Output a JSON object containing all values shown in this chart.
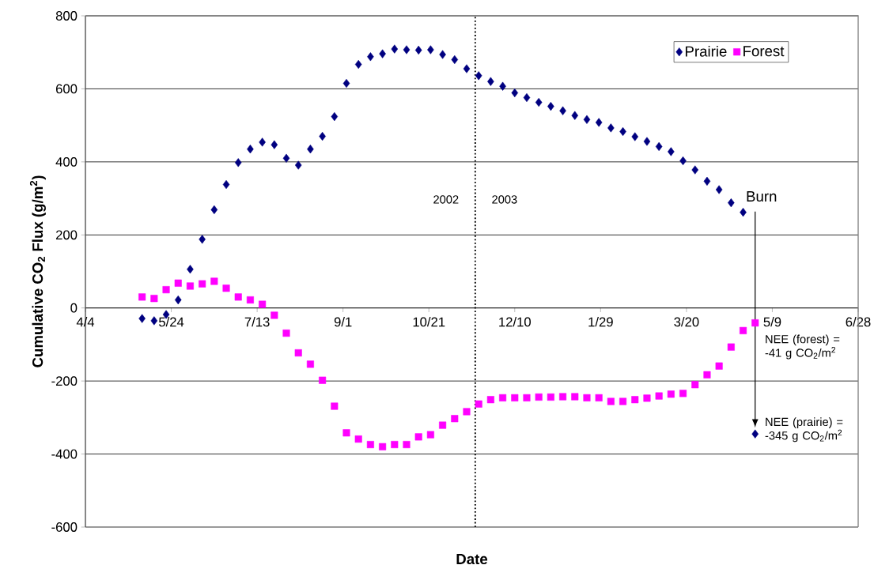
{
  "chart_data": {
    "type": "scatter",
    "xlabel": "Date",
    "ylabel": "Cumulative CO$_{2}$ Flux (g/m$^{2}$)",
    "x": [
      "2002-05-07",
      "2002-05-14",
      "2002-05-21",
      "2002-05-28",
      "2002-06-04",
      "2002-06-11",
      "2002-06-18",
      "2002-06-25",
      "2002-07-02",
      "2002-07-09",
      "2002-07-16",
      "2002-07-23",
      "2002-07-30",
      "2002-08-06",
      "2002-08-13",
      "2002-08-20",
      "2002-08-27",
      "2002-09-03",
      "2002-09-10",
      "2002-09-17",
      "2002-09-24",
      "2002-10-01",
      "2002-10-08",
      "2002-10-15",
      "2002-10-22",
      "2002-10-29",
      "2002-11-05",
      "2002-11-12",
      "2002-11-19",
      "2002-11-26",
      "2002-12-03",
      "2002-12-10",
      "2002-12-17",
      "2002-12-24",
      "2002-12-31",
      "2003-01-07",
      "2003-01-14",
      "2003-01-21",
      "2003-01-28",
      "2003-02-04",
      "2003-02-11",
      "2003-02-18",
      "2003-02-25",
      "2003-03-04",
      "2003-03-11",
      "2003-03-18",
      "2003-03-25",
      "2003-04-01",
      "2003-04-08",
      "2003-04-15",
      "2003-04-22",
      "2003-04-29"
    ],
    "series": [
      {
        "name": "Prairie",
        "color": "#000080",
        "marker": "diamond",
        "values": [
          -29,
          -35,
          -18,
          22,
          106,
          188,
          269,
          338,
          398,
          435,
          454,
          447,
          410,
          391,
          435,
          470,
          524,
          615,
          667,
          688,
          696,
          709,
          707,
          706,
          707,
          694,
          680,
          655,
          636,
          620,
          607,
          589,
          576,
          563,
          552,
          540,
          527,
          516,
          508,
          493,
          483,
          469,
          456,
          442,
          428,
          403,
          378,
          347,
          324,
          288,
          262,
          -345
        ]
      },
      {
        "name": "Forest",
        "color": "#ff00ff",
        "marker": "square",
        "values": [
          30,
          26,
          50,
          68,
          60,
          66,
          73,
          54,
          30,
          22,
          10,
          -20,
          -69,
          -123,
          -154,
          -198,
          -269,
          -342,
          -359,
          -374,
          -380,
          -374,
          -374,
          -353,
          -347,
          -321,
          -303,
          -284,
          -263,
          -251,
          -246,
          -246,
          -246,
          -244,
          -244,
          -243,
          -243,
          -246,
          -246,
          -256,
          -256,
          -251,
          -247,
          -241,
          -236,
          -234,
          -210,
          -183,
          -159,
          -107,
          -62,
          -41
        ]
      }
    ],
    "xlim": [
      "2002-04-04",
      "2003-06-28"
    ],
    "xticks": [
      {
        "value": "2002-04-04",
        "label": "4/4"
      },
      {
        "value": "2002-05-24",
        "label": "5/24"
      },
      {
        "value": "2002-07-13",
        "label": "7/13"
      },
      {
        "value": "2002-09-01",
        "label": "9/1"
      },
      {
        "value": "2002-10-21",
        "label": "10/21"
      },
      {
        "value": "2002-12-10",
        "label": "12/10"
      },
      {
        "value": "2003-01-29",
        "label": "1/29"
      },
      {
        "value": "2003-03-20",
        "label": "3/20"
      },
      {
        "value": "2003-05-09",
        "label": "5/9"
      },
      {
        "value": "2003-06-28",
        "label": "6/28"
      }
    ],
    "ylim": [
      -600,
      800
    ],
    "yticks": [
      -600,
      -400,
      -200,
      0,
      200,
      400,
      600,
      800
    ],
    "grid": "y",
    "legend": "top right",
    "ref_lines": [
      {
        "axis": "x",
        "value": "2002-11-17",
        "line_style": "dotted"
      }
    ],
    "annotations": [
      "2002",
      "2003",
      "Burn",
      {
        "text": "NEE (forest) = -41 g CO$_{2}$/m$^{2}$",
        "x": "2003-04-29",
        "y": -41
      },
      {
        "text": "NEE (prairie) = -345 g CO$_{2}$/m$^{2}$",
        "x": "2003-04-29",
        "y": -345
      }
    ]
  }
}
